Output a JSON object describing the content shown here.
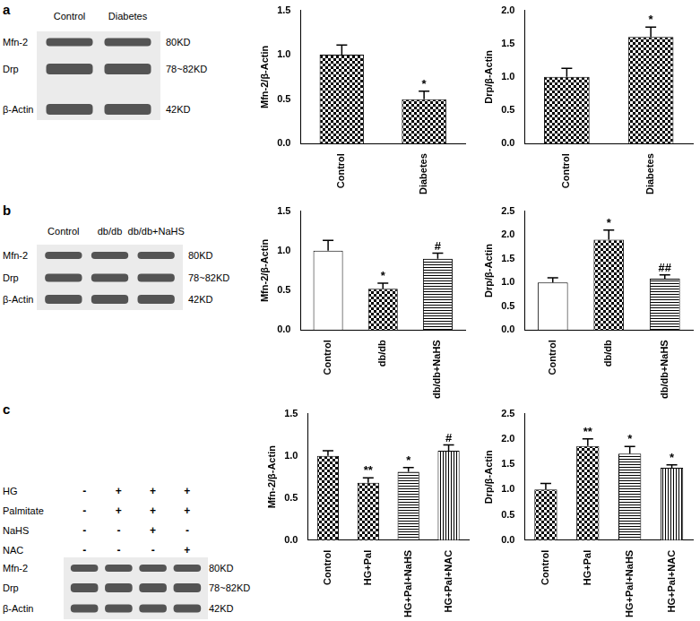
{
  "chart_data": [
    {
      "type": "bar",
      "ylabel": "Mfn-2/β-Actin",
      "categories": [
        "Control",
        "Diabetes"
      ],
      "values": [
        1.0,
        0.5
      ],
      "errors": [
        0.11,
        0.09
      ],
      "significance": [
        null,
        "*"
      ],
      "color": "#000000",
      "grid": false,
      "ylim": [
        0,
        1.5
      ],
      "yticks": [
        {
          "value": 0,
          "label": "0.0"
        },
        {
          "value": 0.5,
          "label": "0.5"
        },
        {
          "value": 1,
          "label": "1.0"
        },
        {
          "value": 1.5,
          "label": "1.5"
        }
      ]
    },
    {
      "type": "bar",
      "ylabel": "Drp/β-Actin",
      "categories": [
        "Control",
        "Diabetes"
      ],
      "values": [
        1.0,
        1.6
      ],
      "errors": [
        0.13,
        0.15
      ],
      "significance": [
        null,
        "*"
      ],
      "color": "#000000",
      "grid": false,
      "ylim": [
        0,
        2
      ],
      "yticks": [
        {
          "value": 0,
          "label": "0.0"
        },
        {
          "value": 0.5,
          "label": "0.5"
        },
        {
          "value": 1,
          "label": "1.0"
        },
        {
          "value": 1.5,
          "label": "1.5"
        },
        {
          "value": 2,
          "label": "2.0"
        }
      ]
    },
    {
      "type": "bar",
      "ylabel": "Mfn-2/β-Actin",
      "categories": [
        "Control",
        "db/db",
        "db/db+NaHS"
      ],
      "values": [
        1.0,
        0.52,
        0.9
      ],
      "errors": [
        0.13,
        0.07,
        0.07
      ],
      "significance": [
        null,
        "*",
        "#"
      ],
      "color": "#000000",
      "grid": false,
      "ylim": [
        0,
        1.5
      ],
      "yticks": [
        {
          "value": 0,
          "label": "0.0"
        },
        {
          "value": 0.5,
          "label": "0.5"
        },
        {
          "value": 1,
          "label": "1.0"
        },
        {
          "value": 1.5,
          "label": "1.5"
        }
      ]
    },
    {
      "type": "bar",
      "ylabel": "Drp/β-Actin",
      "categories": [
        "Control",
        "db/db",
        "db/db+NaHS"
      ],
      "values": [
        1.0,
        1.9,
        1.08
      ],
      "errors": [
        0.1,
        0.2,
        0.08
      ],
      "significance": [
        null,
        "*",
        "##"
      ],
      "color": "#000000",
      "grid": false,
      "ylim": [
        0,
        2.5
      ],
      "yticks": [
        {
          "value": 0,
          "label": "0.0"
        },
        {
          "value": 0.5,
          "label": "0.5"
        },
        {
          "value": 1,
          "label": "1.0"
        },
        {
          "value": 1.5,
          "label": "1.5"
        },
        {
          "value": 2,
          "label": "2.0"
        },
        {
          "value": 2.5,
          "label": "2.5"
        }
      ]
    },
    {
      "type": "bar",
      "ylabel": "Mfn-2/β-Actin",
      "categories": [
        "Control",
        "HG+Pal",
        "HG+Pal+NaHS",
        "HG+Pal+NAC"
      ],
      "values": [
        1.0,
        0.68,
        0.81,
        1.06
      ],
      "errors": [
        0.06,
        0.06,
        0.05,
        0.07
      ],
      "significance": [
        null,
        "**",
        "*",
        "#"
      ],
      "color": "#000000",
      "grid": false,
      "ylim": [
        0,
        1.5
      ],
      "yticks": [
        {
          "value": 0,
          "label": "0.0"
        },
        {
          "value": 0.5,
          "label": "0.5"
        },
        {
          "value": 1,
          "label": "1.0"
        },
        {
          "value": 1.5,
          "label": "1.5"
        }
      ]
    },
    {
      "type": "bar",
      "ylabel": "Drp/β-Actin",
      "categories": [
        "Control",
        "HG+Pal",
        "HG+Pal+NaHS",
        "HG+Pal+NAC"
      ],
      "values": [
        1.0,
        1.86,
        1.71,
        1.43
      ],
      "errors": [
        0.12,
        0.14,
        0.14,
        0.06
      ],
      "significance": [
        null,
        "**",
        "*",
        "*"
      ],
      "color": "#000000",
      "grid": false,
      "ylim": [
        0,
        2.5
      ],
      "yticks": [
        {
          "value": 0,
          "label": "0.0"
        },
        {
          "value": 0.5,
          "label": "0.5"
        },
        {
          "value": 1,
          "label": "1.0"
        },
        {
          "value": 1.5,
          "label": "1.5"
        },
        {
          "value": 2,
          "label": "2.0"
        },
        {
          "value": 2.5,
          "label": "2.5"
        }
      ]
    }
  ],
  "blots": [
    {
      "panel": "a",
      "lanes": [
        "Control",
        "Diabetes"
      ],
      "bands": [
        {
          "name": "Mfn-2",
          "size": "80KD"
        },
        {
          "name": "Drp",
          "size": "78~82KD"
        },
        {
          "name": "β-Actin",
          "size": "42KD"
        }
      ]
    },
    {
      "panel": "b",
      "lanes": [
        "Control",
        "db/db",
        "db/db+NaHS"
      ],
      "bands": [
        {
          "name": "Mfn-2",
          "size": "80KD"
        },
        {
          "name": "Drp",
          "size": "78~82KD"
        },
        {
          "name": "β-Actin",
          "size": "42KD"
        }
      ]
    },
    {
      "panel": "c",
      "treatments": [
        {
          "name": "HG",
          "signs": [
            "-",
            "+",
            "+",
            "+"
          ]
        },
        {
          "name": "Palmitate",
          "signs": [
            "-",
            "+",
            "+",
            "+"
          ]
        },
        {
          "name": "NaHS",
          "signs": [
            "-",
            "-",
            "+",
            "-"
          ]
        },
        {
          "name": "NAC",
          "signs": [
            "-",
            "-",
            "-",
            "+"
          ]
        }
      ],
      "bands": [
        {
          "name": "Mfn-2",
          "size": "80KD"
        },
        {
          "name": "Drp",
          "size": "78~82KD"
        },
        {
          "name": "β-Actin",
          "size": "42KD"
        }
      ]
    }
  ]
}
